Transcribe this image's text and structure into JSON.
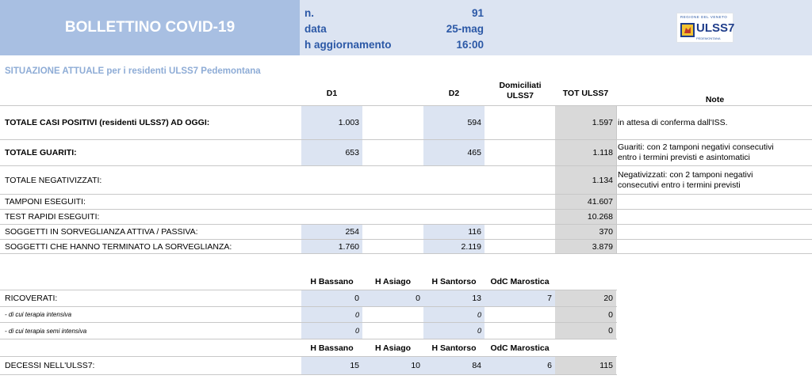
{
  "header": {
    "title": "BOLLETTINO COVID-19",
    "info": [
      {
        "label": "n.",
        "value": "91"
      },
      {
        "label": "data",
        "value": "25-mag"
      },
      {
        "label": "h aggiornamento",
        "value": "16:00"
      }
    ],
    "logo": {
      "top_text": "REGIONE DEL VENETO",
      "main_text": "ULSS7",
      "sub_text": "PEDEMONTANA"
    }
  },
  "subtitle": "SITUAZIONE ATTUALE per i residenti ULSS7 Pedemontana",
  "table1": {
    "columns": {
      "d1": "D1",
      "d2": "D2",
      "dom1": "Domiciliati",
      "dom2": "ULSS7",
      "tot": "TOT ULSS7",
      "note": "Note"
    },
    "rows": [
      {
        "label": "TOTALE CASI POSITIVI (residenti ULSS7) AD OGGI:",
        "d1": "1.003",
        "d2": "594",
        "tot": "1.597",
        "note1": "in attesa di conferma dall'ISS.",
        "note2": ""
      },
      {
        "label": "TOTALE GUARITI:",
        "d1": "653",
        "d2": "465",
        "tot": "1.118",
        "note1": "Guariti: con 2 tamponi negativi consecutivi",
        "note2": "entro i termini previsti e asintomatici"
      },
      {
        "label": "TOTALE NEGATIVIZZATI:",
        "d1": "",
        "d2": "",
        "tot": "1.134",
        "note1": "Negativizzati: con 2 tamponi negativi",
        "note2": "consecutivi entro i termini previsti"
      },
      {
        "label": "TAMPONI ESEGUITI:",
        "d1": "",
        "d2": "",
        "tot": "41.607",
        "note1": "",
        "note2": ""
      },
      {
        "label": "TEST RAPIDI ESEGUITI:",
        "d1": "",
        "d2": "",
        "tot": "10.268",
        "note1": "",
        "note2": ""
      },
      {
        "label": "SOGGETTI IN SORVEGLIANZA ATTIVA / PASSIVA:",
        "d1": "254",
        "d2": "116",
        "tot": "370",
        "note1": "",
        "note2": ""
      },
      {
        "label": "SOGGETTI CHE HANNO TERMINATO LA SORVEGLIANZA:",
        "d1": "1.760",
        "d2": "2.119",
        "tot": "3.879",
        "note1": "",
        "note2": ""
      }
    ]
  },
  "hospitals": {
    "columns": {
      "h1": "H Bassano",
      "h2": "H Asiago",
      "h3": "H Santorso",
      "h4": "OdC Marostica"
    },
    "ricoverati": {
      "label": "RICOVERATI:",
      "h1": "0",
      "h2": "0",
      "h3": "13",
      "h4": "7",
      "tot": "20"
    },
    "intensiva": {
      "label": "- di cui terapia intensiva",
      "h1": "0",
      "h2": "",
      "h3": "0",
      "h4": "",
      "tot": "0"
    },
    "semi_intensiva": {
      "label": "- di cui terapia semi intensiva",
      "h1": "0",
      "h2": "",
      "h3": "0",
      "h4": "",
      "tot": "0"
    },
    "decessi": {
      "label": "DECESSI NELL'ULSS7:",
      "h1": "15",
      "h2": "10",
      "h3": "84",
      "h4": "6",
      "tot": "115"
    }
  }
}
